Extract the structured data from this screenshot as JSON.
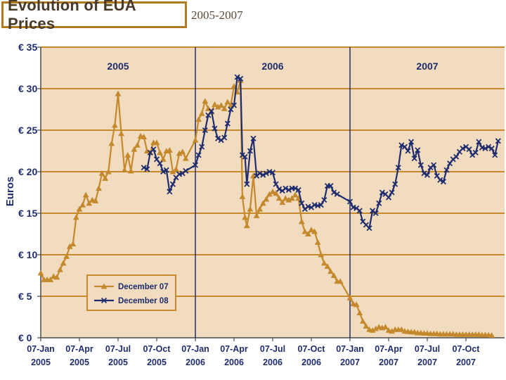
{
  "header": {
    "title": "Evolution of EUA Prices",
    "subtitle": "2005-2007"
  },
  "colors": {
    "plot_bg": "#f2dcc0",
    "grid": "#c78a2b",
    "frame": "#4a4a4a",
    "year_divider": "#1f2d6e",
    "dec07": "#c4892c",
    "dec08": "#1f2d6e",
    "axis_text": "#1f2d6e"
  },
  "chart_data": {
    "type": "line",
    "title": "Evolution of EUA Prices",
    "subtitle": "2005-2007",
    "ylabel": "Euros",
    "xlabel": "",
    "ylim": [
      0,
      35
    ],
    "xlim": [
      0,
      36
    ],
    "x_unit": "months since 07-Jan-2005",
    "grid": true,
    "y_ticks": [
      0,
      5,
      10,
      15,
      20,
      25,
      30,
      35
    ],
    "y_tick_labels": [
      "€ 0",
      "€ 5",
      "€ 10",
      "€ 15",
      "€ 20",
      "€ 25",
      "€ 30",
      "€ 35"
    ],
    "x_ticks": [
      0,
      3,
      6,
      9,
      12,
      15,
      18,
      21,
      24,
      27,
      30,
      33
    ],
    "x_tick_labels": [
      [
        "07-Jan",
        "2005"
      ],
      [
        "07-Apr",
        "2005"
      ],
      [
        "07-Jul",
        "2005"
      ],
      [
        "07-Oct",
        "2005"
      ],
      [
        "07-Jan",
        "2006"
      ],
      [
        "07-Apr",
        "2006"
      ],
      [
        "07-Jul",
        "2006"
      ],
      [
        "07-Oct",
        "2006"
      ],
      [
        "07-Jan",
        "2007"
      ],
      [
        "07-Apr",
        "2007"
      ],
      [
        "07-Jul",
        "2007"
      ],
      [
        "07-Oct",
        "2007"
      ]
    ],
    "year_dividers": [
      12,
      24
    ],
    "year_labels": [
      {
        "label": "2005",
        "x": 6
      },
      {
        "label": "2006",
        "x": 18
      },
      {
        "label": "2007",
        "x": 30
      }
    ],
    "legend": {
      "position": "lower-left",
      "entries": [
        {
          "name": "December 07",
          "marker": "triangle"
        },
        {
          "name": "December 08",
          "marker": "x"
        }
      ]
    },
    "series": [
      {
        "name": "December 07",
        "marker": "triangle",
        "points": [
          [
            0.0,
            7.8
          ],
          [
            0.25,
            7.0
          ],
          [
            0.5,
            7.0
          ],
          [
            0.75,
            7.0
          ],
          [
            1.0,
            7.4
          ],
          [
            1.25,
            7.3
          ],
          [
            1.5,
            8.2
          ],
          [
            1.75,
            9.0
          ],
          [
            2.0,
            9.8
          ],
          [
            2.25,
            11.0
          ],
          [
            2.5,
            11.3
          ],
          [
            2.75,
            14.5
          ],
          [
            3.0,
            15.5
          ],
          [
            3.25,
            16.0
          ],
          [
            3.5,
            17.2
          ],
          [
            3.75,
            16.2
          ],
          [
            4.0,
            16.6
          ],
          [
            4.25,
            16.5
          ],
          [
            4.5,
            18.0
          ],
          [
            4.75,
            19.8
          ],
          [
            5.0,
            19.2
          ],
          [
            5.25,
            20.0
          ],
          [
            5.5,
            23.4
          ],
          [
            5.75,
            25.6
          ],
          [
            6.0,
            29.4
          ],
          [
            6.25,
            24.6
          ],
          [
            6.5,
            20.2
          ],
          [
            6.75,
            22.0
          ],
          [
            7.0,
            20.1
          ],
          [
            7.25,
            22.7
          ],
          [
            7.5,
            23.2
          ],
          [
            7.75,
            24.3
          ],
          [
            8.0,
            24.2
          ],
          [
            8.25,
            22.5
          ],
          [
            8.5,
            22.3
          ],
          [
            8.75,
            23.5
          ],
          [
            9.0,
            23.5
          ],
          [
            9.25,
            22.3
          ],
          [
            9.5,
            21.5
          ],
          [
            9.75,
            22.5
          ],
          [
            10.0,
            22.6
          ],
          [
            10.25,
            20.0
          ],
          [
            10.5,
            20.3
          ],
          [
            10.75,
            22.2
          ],
          [
            11.0,
            22.4
          ],
          [
            11.25,
            21.6
          ],
          [
            12.0,
            23.8
          ],
          [
            12.25,
            26.3
          ],
          [
            12.5,
            27.0
          ],
          [
            12.75,
            28.5
          ],
          [
            13.0,
            27.6
          ],
          [
            13.25,
            27.2
          ],
          [
            13.5,
            28.1
          ],
          [
            13.75,
            27.8
          ],
          [
            14.0,
            28.0
          ],
          [
            14.25,
            27.6
          ],
          [
            14.5,
            28.4
          ],
          [
            14.75,
            28.0
          ],
          [
            15.0,
            30.3
          ],
          [
            15.25,
            29.6
          ],
          [
            15.5,
            31.0
          ],
          [
            15.65,
            17.0
          ],
          [
            15.85,
            14.5
          ],
          [
            16.0,
            13.5
          ],
          [
            16.25,
            15.5
          ],
          [
            16.5,
            19.5
          ],
          [
            16.75,
            14.7
          ],
          [
            17.0,
            15.5
          ],
          [
            17.25,
            16.2
          ],
          [
            17.5,
            16.7
          ],
          [
            17.75,
            17.3
          ],
          [
            18.0,
            17.6
          ],
          [
            18.25,
            17.4
          ],
          [
            18.5,
            16.8
          ],
          [
            18.75,
            16.3
          ],
          [
            19.0,
            16.8
          ],
          [
            19.25,
            16.6
          ],
          [
            19.5,
            16.8
          ],
          [
            19.75,
            17.2
          ],
          [
            20.0,
            16.8
          ],
          [
            20.25,
            14.0
          ],
          [
            20.5,
            12.8
          ],
          [
            20.75,
            12.5
          ],
          [
            21.0,
            13.0
          ],
          [
            21.25,
            12.8
          ],
          [
            21.5,
            11.5
          ],
          [
            21.75,
            10.0
          ],
          [
            22.0,
            9.0
          ],
          [
            22.25,
            8.6
          ],
          [
            22.5,
            8.0
          ],
          [
            22.75,
            7.5
          ],
          [
            23.0,
            6.8
          ],
          [
            23.25,
            6.8
          ],
          [
            24.0,
            4.8
          ],
          [
            24.25,
            4.1
          ],
          [
            24.5,
            4.0
          ],
          [
            24.75,
            3.0
          ],
          [
            25.0,
            2.0
          ],
          [
            25.25,
            1.4
          ],
          [
            25.5,
            1.0
          ],
          [
            25.75,
            0.9
          ],
          [
            26.0,
            1.1
          ],
          [
            26.25,
            1.3
          ],
          [
            26.5,
            1.2
          ],
          [
            26.75,
            1.3
          ],
          [
            27.0,
            0.9
          ],
          [
            27.25,
            0.8
          ],
          [
            27.5,
            1.0
          ],
          [
            27.75,
            1.0
          ],
          [
            28.0,
            1.0
          ],
          [
            28.25,
            0.8
          ],
          [
            28.5,
            0.75
          ],
          [
            28.75,
            0.7
          ],
          [
            29.0,
            0.7
          ],
          [
            29.25,
            0.6
          ],
          [
            29.5,
            0.6
          ],
          [
            29.75,
            0.55
          ],
          [
            30.0,
            0.55
          ],
          [
            30.25,
            0.5
          ],
          [
            30.5,
            0.5
          ],
          [
            30.75,
            0.5
          ],
          [
            31.0,
            0.45
          ],
          [
            31.25,
            0.45
          ],
          [
            31.5,
            0.45
          ],
          [
            31.75,
            0.45
          ],
          [
            32.0,
            0.45
          ],
          [
            32.25,
            0.4
          ],
          [
            32.5,
            0.4
          ],
          [
            32.75,
            0.4
          ],
          [
            33.0,
            0.4
          ],
          [
            33.25,
            0.4
          ],
          [
            33.5,
            0.4
          ],
          [
            33.75,
            0.4
          ],
          [
            34.0,
            0.4
          ],
          [
            34.25,
            0.35
          ],
          [
            34.5,
            0.35
          ],
          [
            34.75,
            0.35
          ],
          [
            35.0,
            0.3
          ]
        ]
      },
      {
        "name": "December 08",
        "marker": "x",
        "points": [
          [
            8.0,
            20.5
          ],
          [
            8.25,
            20.3
          ],
          [
            8.5,
            22.3
          ],
          [
            8.75,
            22.7
          ],
          [
            9.0,
            21.5
          ],
          [
            9.25,
            21.0
          ],
          [
            9.5,
            20.0
          ],
          [
            9.75,
            20.2
          ],
          [
            10.0,
            17.6
          ],
          [
            10.25,
            18.5
          ],
          [
            10.5,
            19.3
          ],
          [
            10.75,
            19.7
          ],
          [
            11.0,
            19.8
          ],
          [
            11.25,
            20.1
          ],
          [
            12.0,
            20.8
          ],
          [
            12.25,
            22.0
          ],
          [
            12.5,
            23.0
          ],
          [
            12.75,
            25.0
          ],
          [
            13.0,
            26.8
          ],
          [
            13.25,
            27.3
          ],
          [
            13.5,
            25.2
          ],
          [
            13.75,
            24.0
          ],
          [
            14.0,
            23.8
          ],
          [
            14.25,
            24.1
          ],
          [
            14.5,
            25.8
          ],
          [
            14.75,
            27.5
          ],
          [
            15.0,
            28.0
          ],
          [
            15.25,
            31.4
          ],
          [
            15.5,
            31.2
          ],
          [
            15.65,
            22.0
          ],
          [
            15.85,
            21.8
          ],
          [
            16.0,
            18.5
          ],
          [
            16.25,
            22.5
          ],
          [
            16.5,
            24.0
          ],
          [
            16.75,
            19.5
          ],
          [
            17.0,
            19.8
          ],
          [
            17.25,
            19.6
          ],
          [
            17.5,
            19.8
          ],
          [
            17.75,
            20.0
          ],
          [
            18.0,
            19.9
          ],
          [
            18.25,
            18.5
          ],
          [
            18.5,
            17.9
          ],
          [
            18.75,
            17.7
          ],
          [
            19.0,
            18.0
          ],
          [
            19.25,
            17.8
          ],
          [
            19.5,
            18.0
          ],
          [
            19.75,
            18.0
          ],
          [
            20.0,
            17.8
          ],
          [
            20.25,
            16.2
          ],
          [
            20.5,
            15.5
          ],
          [
            20.75,
            15.8
          ],
          [
            21.0,
            15.7
          ],
          [
            21.25,
            16.0
          ],
          [
            21.5,
            15.9
          ],
          [
            21.75,
            16.0
          ],
          [
            22.0,
            16.6
          ],
          [
            22.25,
            18.3
          ],
          [
            22.5,
            18.3
          ],
          [
            22.75,
            17.5
          ],
          [
            23.0,
            17.3
          ],
          [
            24.0,
            16.4
          ],
          [
            24.25,
            15.7
          ],
          [
            24.5,
            15.6
          ],
          [
            24.75,
            15.3
          ],
          [
            25.0,
            14.0
          ],
          [
            25.25,
            13.6
          ],
          [
            25.5,
            13.2
          ],
          [
            25.75,
            15.3
          ],
          [
            26.0,
            15.0
          ],
          [
            26.25,
            16.2
          ],
          [
            26.5,
            17.5
          ],
          [
            26.75,
            17.3
          ],
          [
            27.0,
            16.9
          ],
          [
            27.25,
            17.5
          ],
          [
            27.5,
            18.5
          ],
          [
            27.75,
            20.5
          ],
          [
            28.0,
            23.2
          ],
          [
            28.25,
            23.0
          ],
          [
            28.5,
            22.5
          ],
          [
            28.75,
            23.6
          ],
          [
            29.0,
            21.6
          ],
          [
            29.25,
            22.6
          ],
          [
            29.5,
            20.8
          ],
          [
            29.75,
            19.8
          ],
          [
            30.0,
            19.6
          ],
          [
            30.25,
            20.5
          ],
          [
            30.5,
            20.8
          ],
          [
            30.75,
            19.5
          ],
          [
            31.0,
            19.0
          ],
          [
            31.25,
            18.8
          ],
          [
            31.5,
            20.2
          ],
          [
            31.75,
            21.0
          ],
          [
            32.0,
            21.5
          ],
          [
            32.25,
            21.8
          ],
          [
            32.5,
            22.4
          ],
          [
            32.75,
            22.8
          ],
          [
            33.0,
            23.0
          ],
          [
            33.25,
            22.7
          ],
          [
            33.5,
            22.0
          ],
          [
            33.75,
            22.3
          ],
          [
            34.0,
            23.6
          ],
          [
            34.25,
            22.9
          ],
          [
            34.5,
            22.8
          ],
          [
            34.75,
            23.0
          ],
          [
            35.0,
            22.8
          ],
          [
            35.25,
            22.0
          ],
          [
            35.5,
            23.7
          ]
        ]
      }
    ]
  }
}
